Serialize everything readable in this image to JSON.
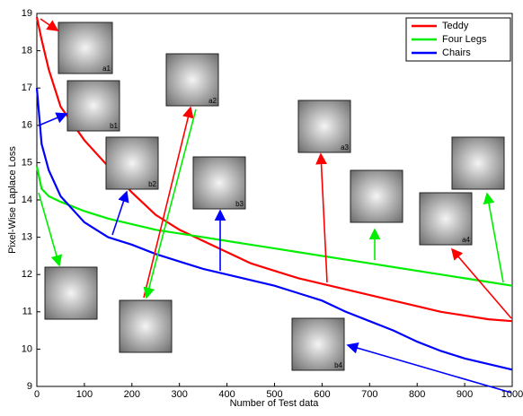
{
  "chart_data": {
    "type": "line",
    "x_label": "Number of Test data",
    "y_label": "Pixel-Wise Laplace Loss",
    "x": [
      0,
      10,
      25,
      50,
      100,
      150,
      200,
      250,
      300,
      350,
      400,
      450,
      500,
      550,
      600,
      650,
      700,
      750,
      800,
      850,
      900,
      950,
      1000
    ],
    "series": [
      {
        "name": "Teddy",
        "color": "#ff0000",
        "values": [
          18.9,
          18.3,
          17.5,
          16.5,
          15.6,
          14.9,
          14.2,
          13.6,
          13.2,
          12.9,
          12.6,
          12.3,
          12.1,
          11.9,
          11.75,
          11.6,
          11.45,
          11.3,
          11.15,
          11.0,
          10.9,
          10.8,
          10.75
        ]
      },
      {
        "name": "Four Legs",
        "color": "#00ee00",
        "values": [
          14.9,
          14.3,
          14.1,
          13.95,
          13.7,
          13.5,
          13.35,
          13.2,
          13.1,
          13.0,
          12.9,
          12.8,
          12.7,
          12.6,
          12.5,
          12.4,
          12.3,
          12.2,
          12.1,
          12.0,
          11.9,
          11.8,
          11.7
        ]
      },
      {
        "name": "Chairs",
        "color": "#0000ff",
        "values": [
          17.0,
          15.5,
          14.8,
          14.1,
          13.4,
          13.0,
          12.8,
          12.55,
          12.35,
          12.15,
          12.0,
          11.85,
          11.7,
          11.5,
          11.3,
          11.0,
          10.75,
          10.5,
          10.2,
          9.95,
          9.75,
          9.6,
          9.45
        ]
      }
    ],
    "xlim": [
      0,
      1000
    ],
    "xticks": [
      0,
      100,
      200,
      300,
      400,
      500,
      600,
      700,
      800,
      900,
      1000
    ],
    "ylim": [
      9,
      19
    ],
    "yticks": [
      9,
      10,
      11,
      12,
      13,
      14,
      15,
      16,
      17,
      18,
      19
    ],
    "legend": "upper right",
    "annotations": [
      "a1",
      "b1",
      "a2",
      "b2",
      "b3",
      "a3",
      "a4",
      "b4"
    ]
  }
}
